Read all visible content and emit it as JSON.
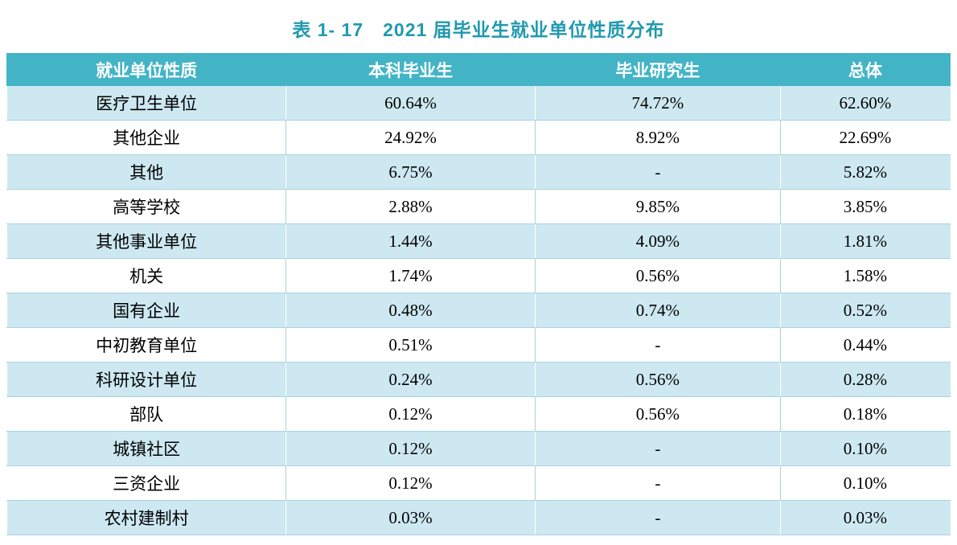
{
  "title": "表 1- 17　2021 届毕业生就业单位性质分布",
  "colors": {
    "header_bg": "#43b4c6",
    "alt_row_bg": "#cde8f1",
    "title_color": "#2199af"
  },
  "table": {
    "columns": [
      "就业单位性质",
      "本科毕业生",
      "毕业研究生",
      "总体"
    ],
    "rows": [
      [
        "医疗卫生单位",
        "60.64%",
        "74.72%",
        "62.60%"
      ],
      [
        "其他企业",
        "24.92%",
        "8.92%",
        "22.69%"
      ],
      [
        "其他",
        "6.75%",
        "-",
        "5.82%"
      ],
      [
        "高等学校",
        "2.88%",
        "9.85%",
        "3.85%"
      ],
      [
        "其他事业单位",
        "1.44%",
        "4.09%",
        "1.81%"
      ],
      [
        "机关",
        "1.74%",
        "0.56%",
        "1.58%"
      ],
      [
        "国有企业",
        "0.48%",
        "0.74%",
        "0.52%"
      ],
      [
        "中初教育单位",
        "0.51%",
        "-",
        "0.44%"
      ],
      [
        "科研设计单位",
        "0.24%",
        "0.56%",
        "0.28%"
      ],
      [
        "部队",
        "0.12%",
        "0.56%",
        "0.18%"
      ],
      [
        "城镇社区",
        "0.12%",
        "-",
        "0.10%"
      ],
      [
        "三资企业",
        "0.12%",
        "-",
        "0.10%"
      ],
      [
        "农村建制村",
        "0.03%",
        "-",
        "0.03%"
      ]
    ]
  }
}
